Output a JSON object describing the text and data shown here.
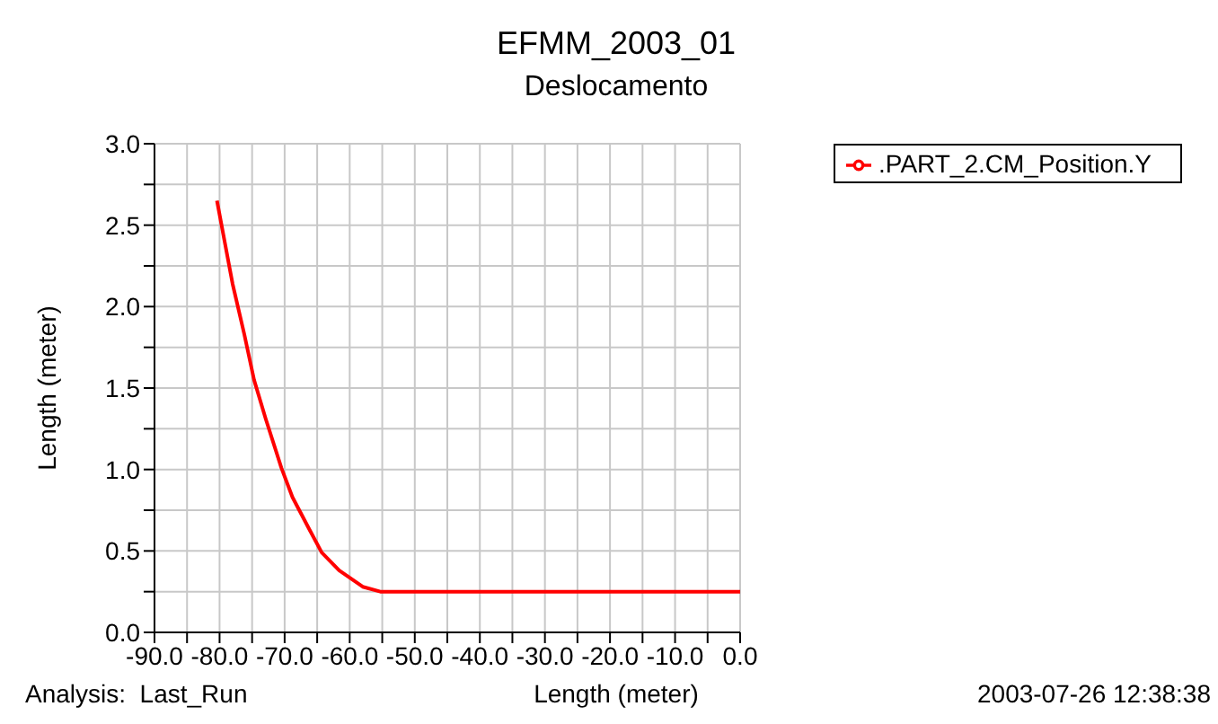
{
  "chart_data": {
    "type": "line",
    "title": "EFMM_2003_01",
    "subtitle": "Deslocamento",
    "xlabel": "Length (meter)",
    "ylabel": "Length (meter)",
    "annotations": [
      "Analysis:  Last_Run",
      "2003-07-26 12:38:38"
    ],
    "x": [
      -80.4,
      -78.0,
      -76.2,
      -74.7,
      -72.9,
      -70.5,
      -68.8,
      -66.3,
      -64.3,
      -61.6,
      -58.0,
      -55.3,
      -50.0,
      -40.0,
      -30.0,
      -20.0,
      -10.0,
      0.0
    ],
    "series": [
      {
        "name": ".PART_2.CM_Position.Y",
        "color": "#ff0000",
        "values": [
          2.65,
          2.14,
          1.83,
          1.55,
          1.31,
          1.01,
          0.83,
          0.64,
          0.49,
          0.38,
          0.28,
          0.25,
          0.25,
          0.25,
          0.25,
          0.25,
          0.25,
          0.25
        ]
      }
    ],
    "xlim": [
      -90,
      0
    ],
    "xticks": [
      {
        "value": -90,
        "label": "-90.0"
      },
      {
        "value": -85,
        "label": null
      },
      {
        "value": -80,
        "label": "-80.0"
      },
      {
        "value": -75,
        "label": null
      },
      {
        "value": -70,
        "label": "-70.0"
      },
      {
        "value": -65,
        "label": null
      },
      {
        "value": -60,
        "label": "-60.0"
      },
      {
        "value": -55,
        "label": null
      },
      {
        "value": -50,
        "label": "-50.0"
      },
      {
        "value": -45,
        "label": null
      },
      {
        "value": -40,
        "label": "-40.0"
      },
      {
        "value": -35,
        "label": null
      },
      {
        "value": -30,
        "label": "-30.0"
      },
      {
        "value": -25,
        "label": null
      },
      {
        "value": -20,
        "label": "-20.0"
      },
      {
        "value": -15,
        "label": null
      },
      {
        "value": -10,
        "label": "-10.0"
      },
      {
        "value": -5,
        "label": null
      },
      {
        "value": 0,
        "label": "0.0"
      }
    ],
    "ylim": [
      0,
      3
    ],
    "yticks": [
      {
        "value": 0,
        "label": "0.0"
      },
      {
        "value": 0.25,
        "label": null
      },
      {
        "value": 0.5,
        "label": "0.5"
      },
      {
        "value": 0.75,
        "label": null
      },
      {
        "value": 1,
        "label": "1.0"
      },
      {
        "value": 1.25,
        "label": null
      },
      {
        "value": 1.5,
        "label": "1.5"
      },
      {
        "value": 1.75,
        "label": null
      },
      {
        "value": 2,
        "label": "2.0"
      },
      {
        "value": 2.25,
        "label": null
      },
      {
        "value": 2.5,
        "label": "2.5"
      },
      {
        "value": 2.75,
        "label": null
      },
      {
        "value": 3,
        "label": "3.0"
      }
    ],
    "grid": true,
    "legend": "top right",
    "marker": "none",
    "line_style": "solid"
  }
}
